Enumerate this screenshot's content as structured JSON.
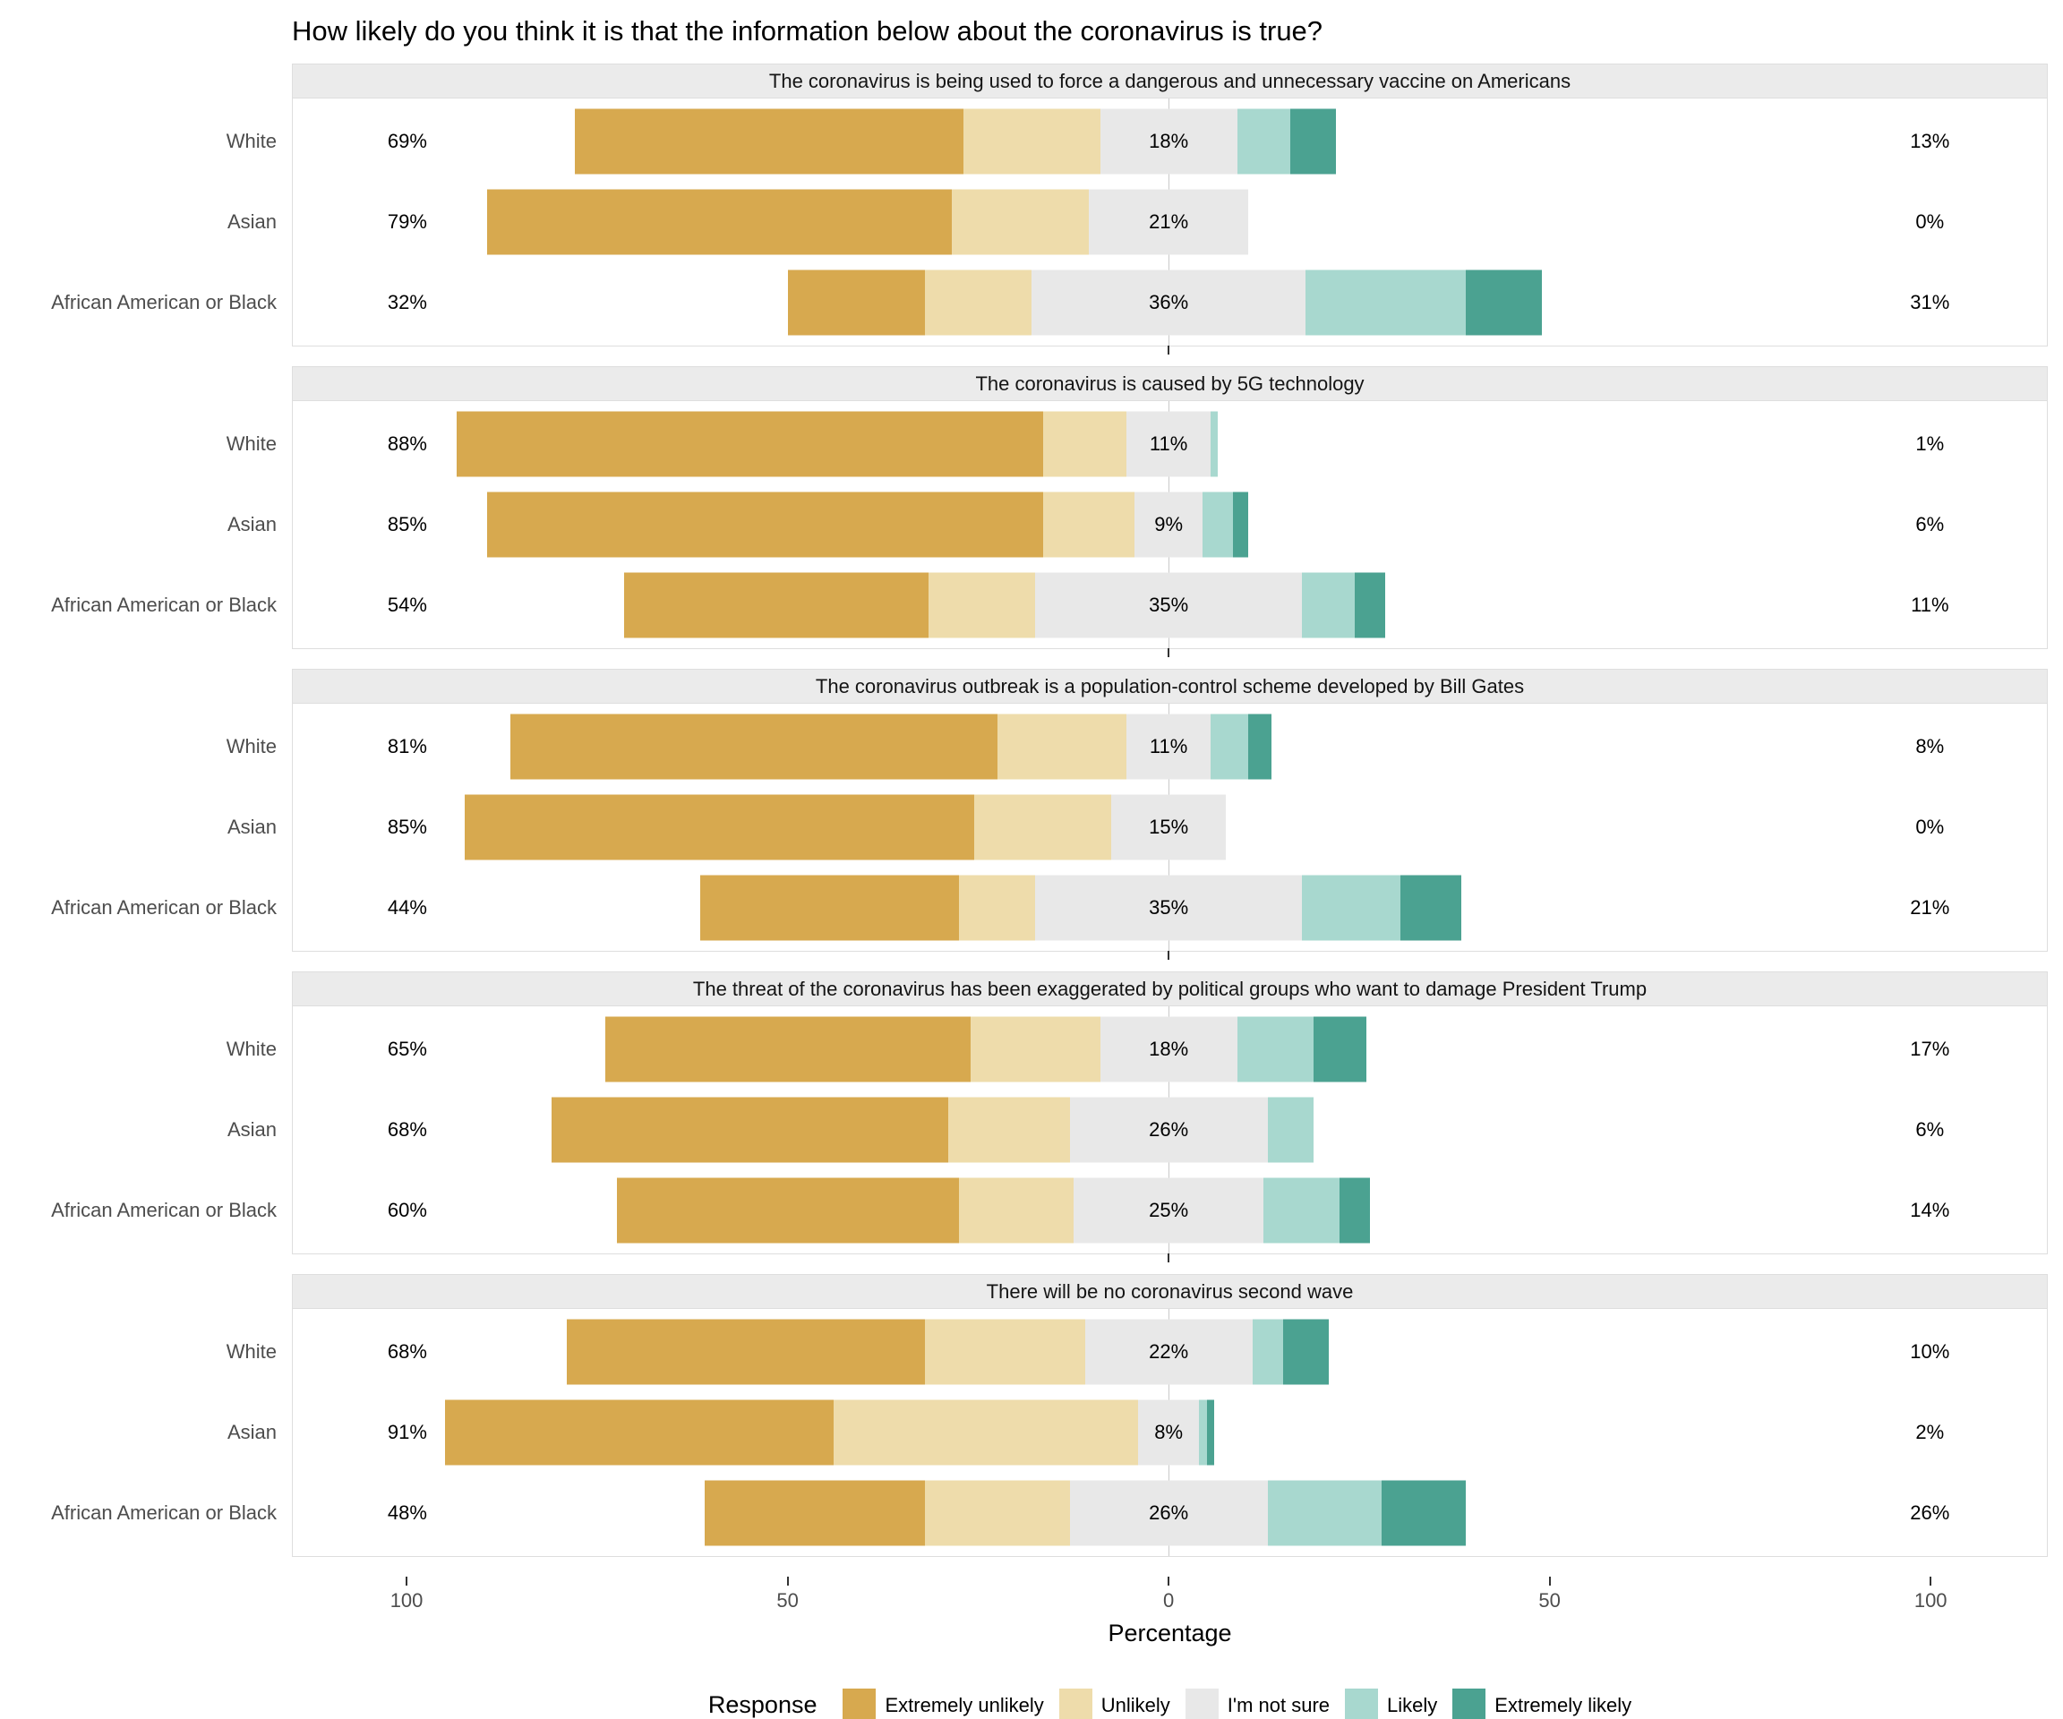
{
  "chart_data": {
    "type": "bar",
    "variant": "diverging-stacked-likert-faceted",
    "title": "How likely do you think it is that the information below about the coronavirus is true?",
    "xlabel": "Percentage",
    "unit": "%",
    "xlim": [
      -100,
      100
    ],
    "x_ticks": {
      "values": [
        -100,
        -50,
        0,
        50,
        100
      ],
      "labels": [
        "100",
        "50",
        "0",
        "50",
        "100"
      ]
    },
    "grid": "off",
    "categories": [
      "White",
      "Asian",
      "African American or Black"
    ],
    "responses": [
      "Extremely unlikely",
      "Unlikely",
      "I'm not sure",
      "Likely",
      "Extremely likely"
    ],
    "legend": {
      "title": "Response",
      "position": "bottom",
      "items": [
        {
          "label": "Extremely unlikely",
          "color": "#d7a94f"
        },
        {
          "label": "Unlikely",
          "color": "#eedcab"
        },
        {
          "label": "I'm not sure",
          "color": "#e8e8e8"
        },
        {
          "label": "Likely",
          "color": "#a8d8cf"
        },
        {
          "label": "Extremely likely",
          "color": "#4ba291"
        }
      ]
    },
    "panels": [
      {
        "title": "The coronavirus is being used to force a dangerous and unnecessary vaccine on Americans",
        "rows": [
          {
            "category": "White",
            "values": [
              51,
              18,
              18,
              7,
              6
            ],
            "label_left": "69%",
            "label_mid": "18%",
            "label_right": "13%"
          },
          {
            "category": "Asian",
            "values": [
              61,
              18,
              21,
              0,
              0
            ],
            "label_left": "79%",
            "label_mid": "21%",
            "label_right": "0%"
          },
          {
            "category": "African American or Black",
            "values": [
              18,
              14,
              36,
              21,
              10
            ],
            "label_left": "32%",
            "label_mid": "36%",
            "label_right": "31%"
          }
        ]
      },
      {
        "title": "The coronavirus is caused by 5G technology",
        "rows": [
          {
            "category": "White",
            "values": [
              77,
              11,
              11,
              1,
              0
            ],
            "label_left": "88%",
            "label_mid": "11%",
            "label_right": "1%"
          },
          {
            "category": "Asian",
            "values": [
              73,
              12,
              9,
              4,
              2
            ],
            "label_left": "85%",
            "label_mid": "9%",
            "label_right": "6%"
          },
          {
            "category": "African American or Black",
            "values": [
              40,
              14,
              35,
              7,
              4
            ],
            "label_left": "54%",
            "label_mid": "35%",
            "label_right": "11%"
          }
        ]
      },
      {
        "title": "The coronavirus outbreak is a population-control scheme developed by Bill Gates",
        "rows": [
          {
            "category": "White",
            "values": [
              64,
              17,
              11,
              5,
              3
            ],
            "label_left": "81%",
            "label_mid": "11%",
            "label_right": "8%"
          },
          {
            "category": "Asian",
            "values": [
              67,
              18,
              15,
              0,
              0
            ],
            "label_left": "85%",
            "label_mid": "15%",
            "label_right": "0%"
          },
          {
            "category": "African American or Black",
            "values": [
              34,
              10,
              35,
              13,
              8
            ],
            "label_left": "44%",
            "label_mid": "35%",
            "label_right": "21%"
          }
        ]
      },
      {
        "title": "The threat of the coronavirus has been exaggerated by political groups who want to damage President Trump",
        "rows": [
          {
            "category": "White",
            "values": [
              48,
              17,
              18,
              10,
              7
            ],
            "label_left": "65%",
            "label_mid": "18%",
            "label_right": "17%"
          },
          {
            "category": "Asian",
            "values": [
              52,
              16,
              26,
              6,
              0
            ],
            "label_left": "68%",
            "label_mid": "26%",
            "label_right": "6%"
          },
          {
            "category": "African American or Black",
            "values": [
              45,
              15,
              25,
              10,
              4
            ],
            "label_left": "60%",
            "label_mid": "25%",
            "label_right": "14%"
          }
        ]
      },
      {
        "title": "There will be no coronavirus second wave",
        "rows": [
          {
            "category": "White",
            "values": [
              47,
              21,
              22,
              4,
              6
            ],
            "label_left": "68%",
            "label_mid": "22%",
            "label_right": "10%"
          },
          {
            "category": "Asian",
            "values": [
              51,
              40,
              8,
              1,
              1
            ],
            "label_left": "91%",
            "label_mid": "8%",
            "label_right": "2%"
          },
          {
            "category": "African American or Black",
            "values": [
              29,
              19,
              26,
              15,
              11
            ],
            "label_left": "48%",
            "label_mid": "26%",
            "label_right": "26%"
          }
        ]
      }
    ]
  }
}
